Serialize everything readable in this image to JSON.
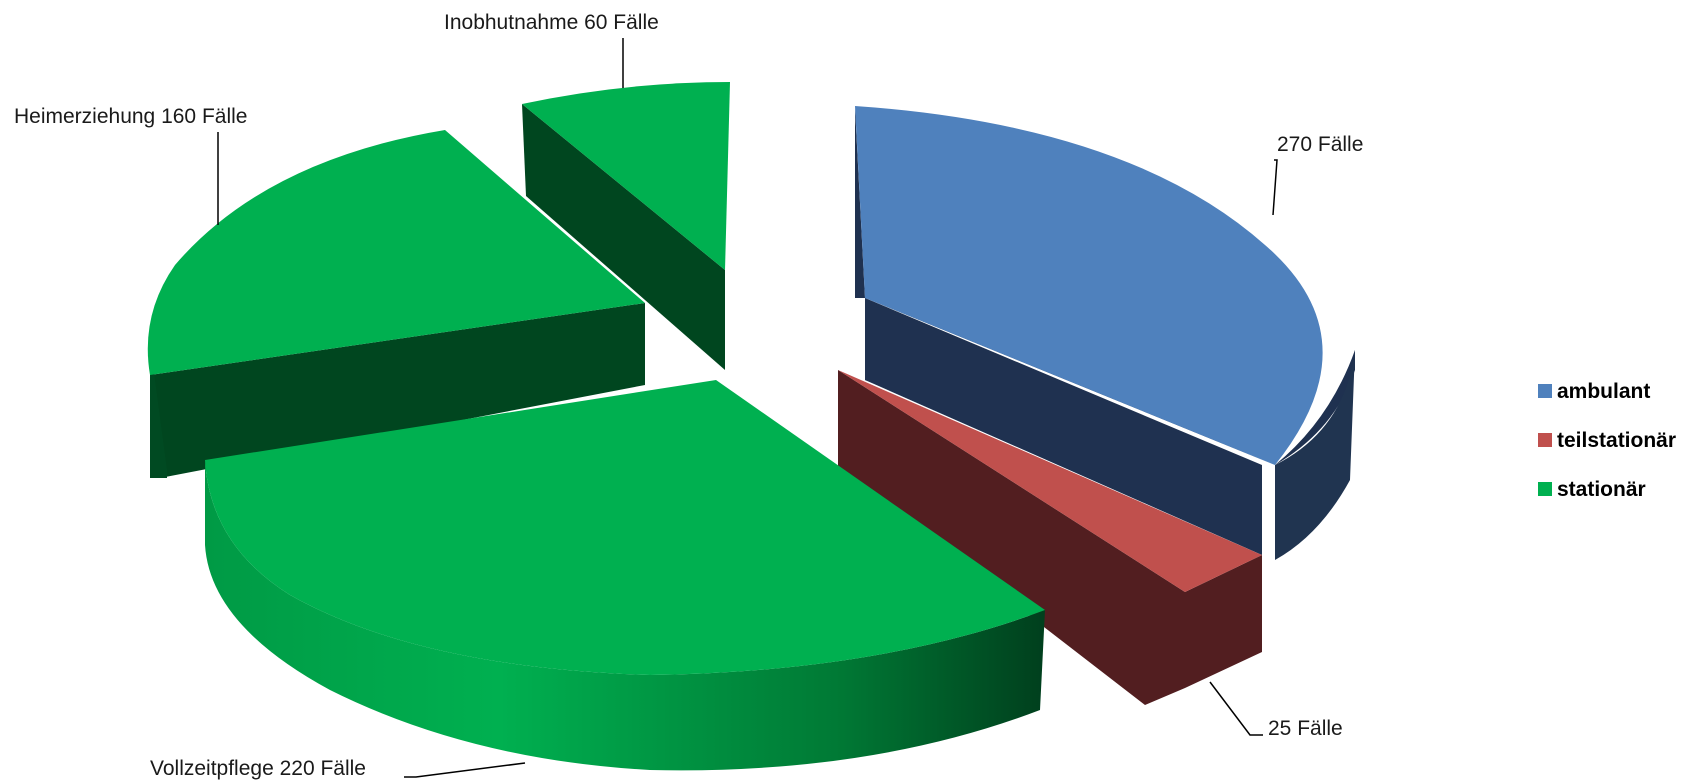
{
  "chart_data": {
    "type": "pie",
    "style": "3d-exploded",
    "unit": "Fälle",
    "slices": [
      {
        "label": "Vollzeitpflege 220 Fälle",
        "value": 220,
        "category": "stationär",
        "color": "#00B050"
      },
      {
        "label": "Heimerziehung 160 Fälle",
        "value": 160,
        "category": "stationär",
        "color": "#00B050"
      },
      {
        "label": "Inobhutnahme 60 Fälle",
        "value": 60,
        "category": "stationär",
        "color": "#00B050"
      },
      {
        "label": "270 Fälle",
        "value": 270,
        "category": "ambulant",
        "color": "#4F81BD"
      },
      {
        "label": "25 Fälle",
        "value": 25,
        "category": "teilstationär",
        "color": "#C0504D"
      }
    ],
    "legend": {
      "position": "right",
      "items": [
        {
          "label": "ambulant",
          "color": "#4F81BD"
        },
        {
          "label": "teilstationär",
          "color": "#C0504D"
        },
        {
          "label": "stationär",
          "color": "#00B050"
        }
      ]
    }
  }
}
